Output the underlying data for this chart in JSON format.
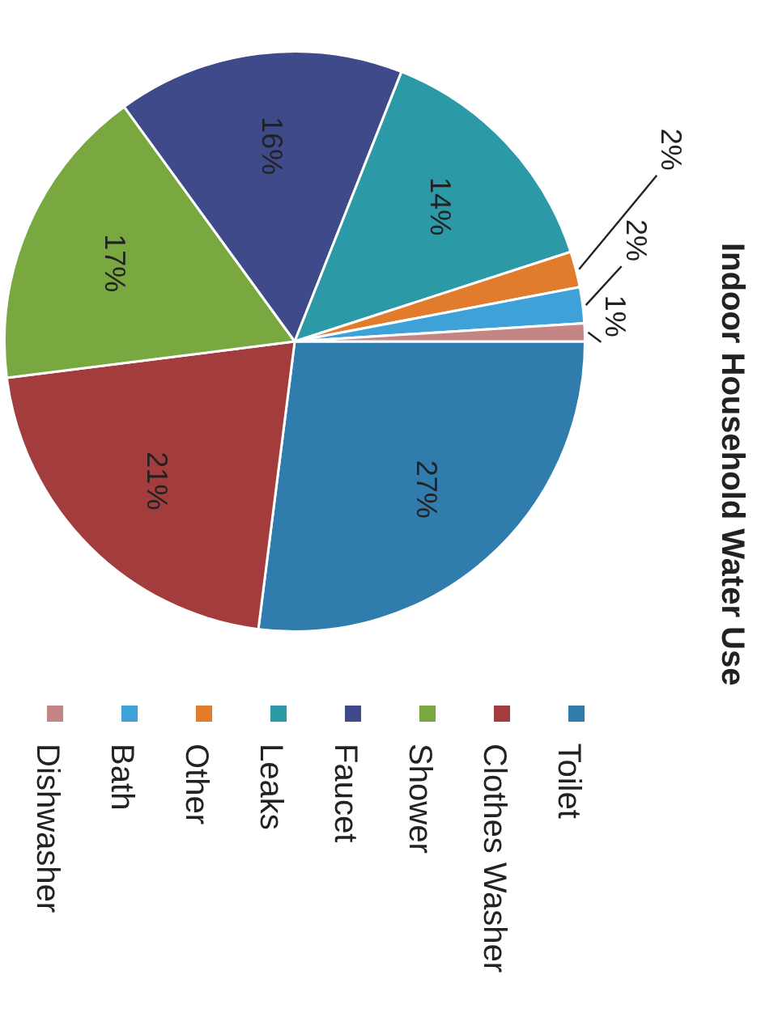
{
  "chart_data": {
    "type": "pie",
    "title": "Indoor Household Water Use",
    "categories": [
      "Toilet",
      "Clothes Washer",
      "Shower",
      "Faucet",
      "Leaks",
      "Other",
      "Bath",
      "Dishwasher"
    ],
    "values": [
      27,
      21,
      17,
      16,
      14,
      2,
      2,
      1
    ],
    "colors": [
      "#2f7cad",
      "#a33c3c",
      "#78a83f",
      "#3e4a8a",
      "#2b9aa6",
      "#e07c2c",
      "#3ea2d8",
      "#c48585"
    ],
    "value_labels": [
      "27%",
      "21%",
      "17%",
      "16%",
      "14%",
      "2%",
      "2%",
      "1%"
    ],
    "legend": "right"
  }
}
